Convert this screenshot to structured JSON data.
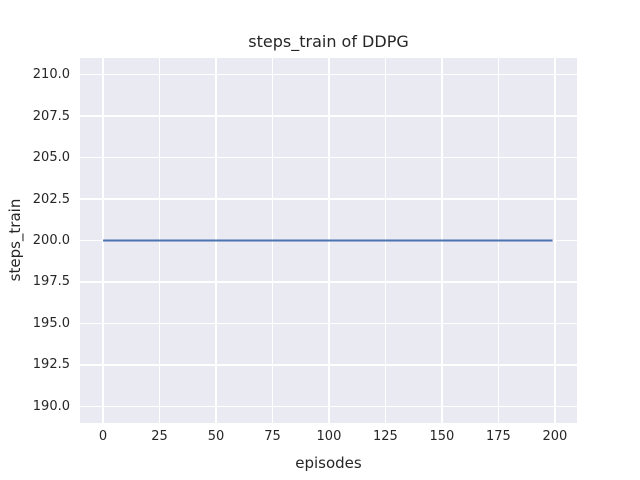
{
  "chart_data": {
    "type": "line",
    "title": "steps_train of DDPG",
    "xlabel": "episodes",
    "ylabel": "steps_train",
    "series": [
      {
        "name": "steps_train",
        "color": "#4c72b0",
        "x": [
          0,
          199
        ],
        "y": [
          200,
          200
        ],
        "description": "constant value 200 for every episode from 0 to 199"
      }
    ],
    "xlim": [
      -10.2,
      209.8
    ],
    "ylim": [
      189.0,
      211.0
    ],
    "xticks": [
      0,
      25,
      50,
      75,
      100,
      125,
      150,
      175,
      200
    ],
    "xtick_labels": [
      "0",
      "25",
      "50",
      "75",
      "100",
      "125",
      "150",
      "175",
      "200"
    ],
    "yticks": [
      190.0,
      192.5,
      195.0,
      197.5,
      200.0,
      202.5,
      205.0,
      207.5,
      210.0
    ],
    "ytick_labels": [
      "190.0",
      "192.5",
      "195.0",
      "197.5",
      "200.0",
      "202.5",
      "205.0",
      "207.5",
      "210.0"
    ],
    "grid": true,
    "legend_position": "none",
    "colors": {
      "figure_background": "#ffffff",
      "plot_background": "#eaeaf2",
      "grid": "#ffffff",
      "text": "#262626",
      "line": "#4c72b0"
    }
  }
}
